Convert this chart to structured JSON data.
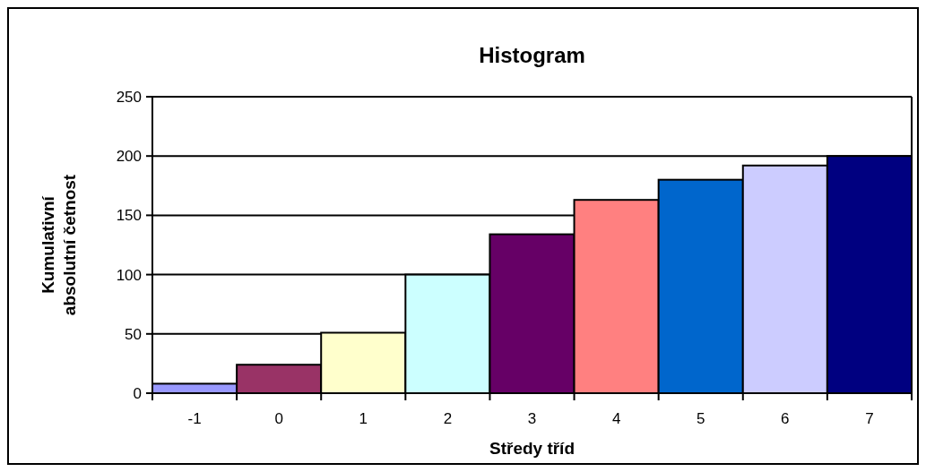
{
  "chart_data": {
    "type": "bar",
    "title": "Histogram",
    "xlabel": "Středy tříd",
    "ylabel": "Kumulativní\nabsolutní četnost",
    "categories": [
      "-1",
      "0",
      "1",
      "2",
      "3",
      "4",
      "5",
      "6",
      "7"
    ],
    "values": [
      8,
      24,
      51,
      100,
      134,
      163,
      180,
      192,
      200
    ],
    "colors": [
      "#9999ff",
      "#993366",
      "#ffffcc",
      "#ccffff",
      "#660066",
      "#ff8080",
      "#0066cc",
      "#ccccff",
      "#000080"
    ],
    "ylim": [
      0,
      250
    ],
    "yticks": [
      0,
      50,
      100,
      150,
      200,
      250
    ],
    "grid": "y"
  }
}
